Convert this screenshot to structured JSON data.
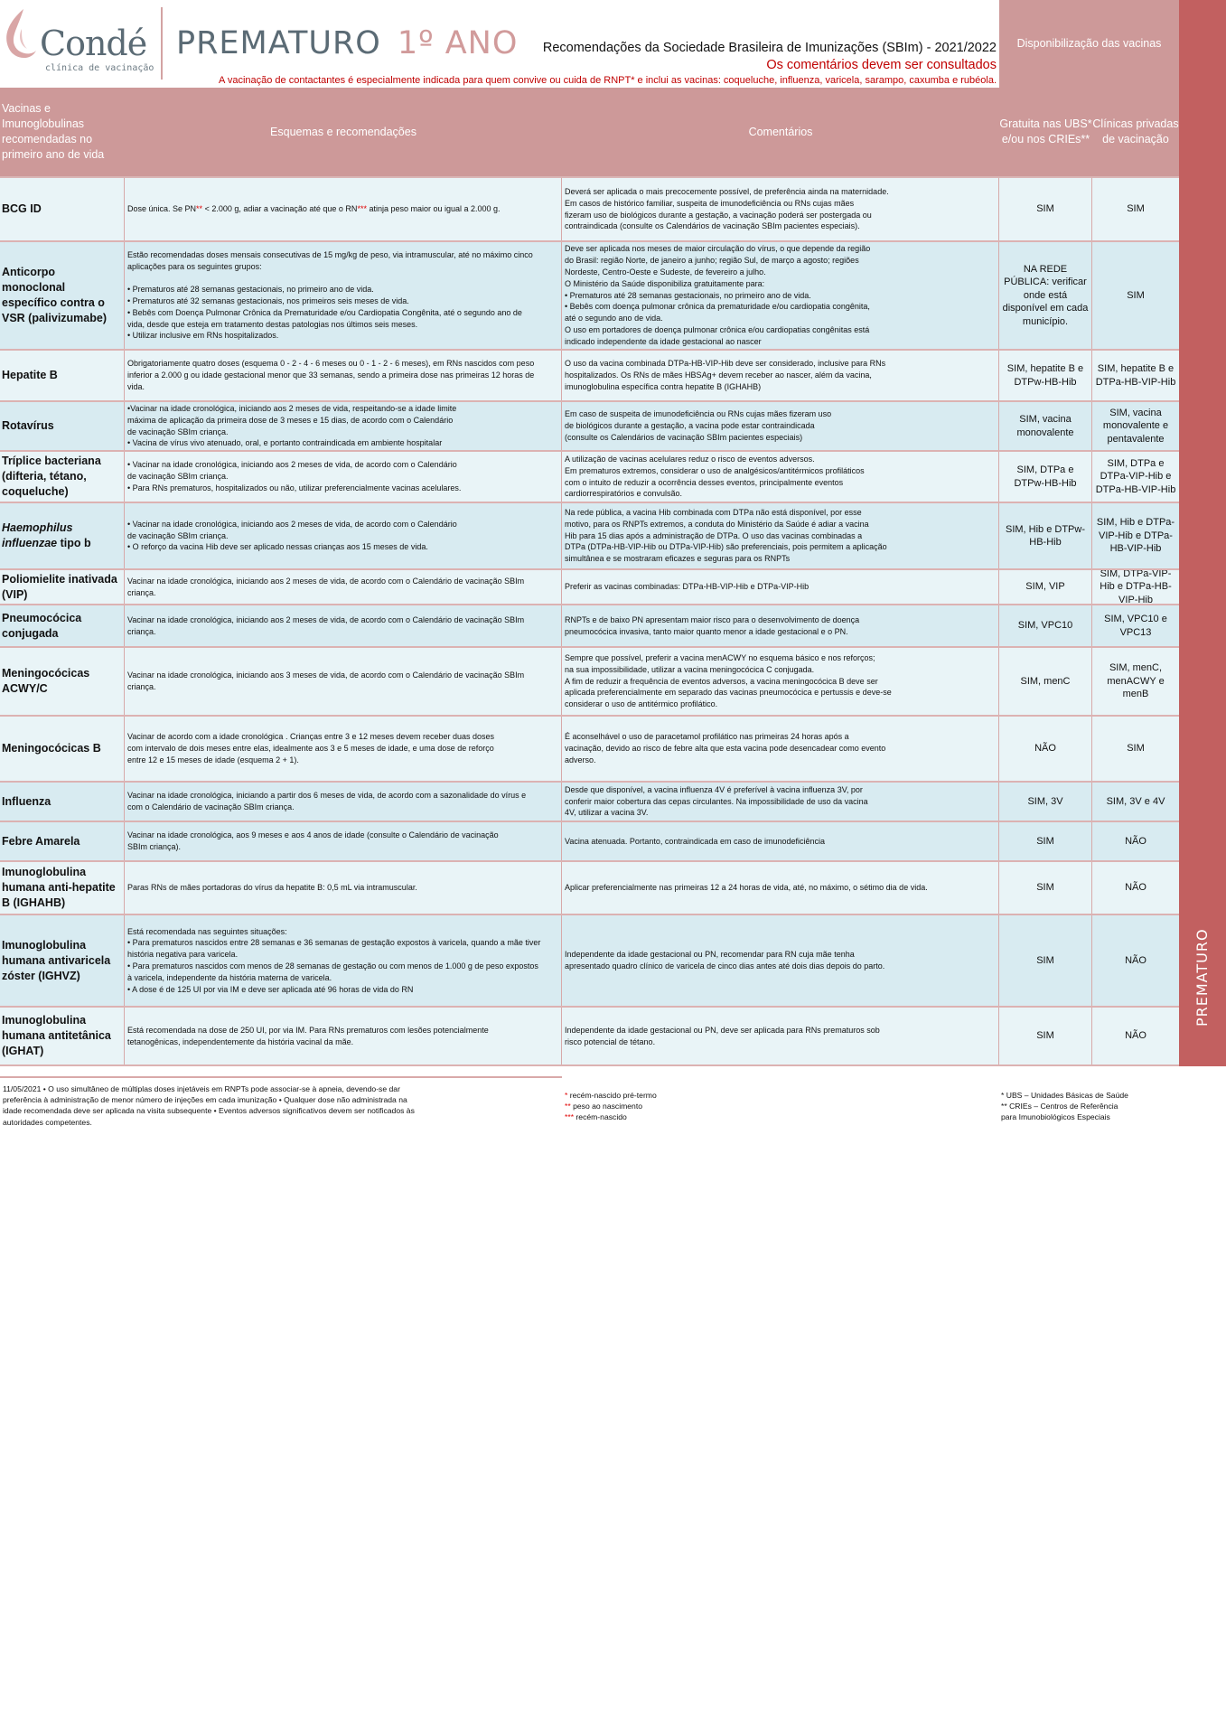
{
  "brand": {
    "name": "Condé",
    "subtitle": "clínica de vacinação",
    "accent": "#c26060",
    "header_color": "#cd9999"
  },
  "title": {
    "main": "PREMATURO",
    "year": "1º ANO"
  },
  "subtitle": "Recomendações da Sociedade Brasileira de Imunizações (SBIm) - 2021/2022",
  "consult_note": "Os comentários devem ser consultados",
  "contact_note": "A vacinação de contactantes é especialmente indicada para quem convive ou cuida de RNPT* e inclui as vacinas: coqueluche, influenza, varicela, sarampo, caxumba e rubéola.",
  "availability_header": "Disponibilização das vacinas",
  "side_label": "PREMATURO",
  "columns": [
    "Vacinas e Imunoglobulinas recomendadas no primeiro ano de vida",
    "Esquemas e recomendações",
    "Comentários",
    "Gratuita nas UBS* e/ou nos CRIEs**",
    "Clínicas privadas de vacinação"
  ],
  "rows": [
    {
      "name": "BCG ID",
      "scheme_parts": [
        {
          "t": "Dose única. Se PN"
        },
        {
          "t": "**",
          "red": true
        },
        {
          "t": " < 2.000 g, adiar a vacinação até que o RN"
        },
        {
          "t": "***",
          "red": true
        },
        {
          "t": " atinja peso maior ou igual a 2.000 g."
        }
      ],
      "comments": [
        "Deverá ser aplicada o mais precocemente possível, de preferência ainda na maternidade.",
        "Em casos de histórico familiar, suspeita de imunodeficiência ou RNs cujas mães",
        "fizeram uso de biológicos durante a gestação, a vacinação poderá ser postergada ou",
        "contraindicada (consulte os Calendários de vacinação SBIm pacientes especiais)."
      ],
      "public": "SIM",
      "private": "SIM"
    },
    {
      "name": "Anticorpo monoclonal específico contra o VSR (palivizumabe)",
      "scheme": [
        "Estão recomendadas doses mensais consecutivas de 15 mg/kg de peso, via intramuscular, até no máximo cinco",
        "aplicações para os seguintes grupos:",
        " ",
        "• Prematuros até 28 semanas gestacionais, no primeiro ano de vida.",
        "• Prematuros até 32 semanas gestacionais, nos primeiros seis meses de vida.",
        "• Bebês com Doença Pulmonar Crônica da Prematuridade e/ou Cardiopatia Congênita, até o segundo ano de",
        "vida, desde que esteja em tratamento destas patologias nos últimos seis meses.",
        "• Utilizar inclusive em RNs hospitalizados."
      ],
      "comments": [
        "Deve ser aplicada nos meses de maior circulação do vírus, o que depende da região",
        "do Brasil: região Norte, de janeiro a junho; região Sul, de março a agosto; regiões",
        "Nordeste, Centro-Oeste e Sudeste, de fevereiro a julho.",
        "O Ministério da Saúde disponibiliza gratuitamente para:",
        "• Prematuros até 28 semanas gestacionais, no primeiro ano de vida.",
        "• Bebês com doença pulmonar crônica da prematuridade e/ou cardiopatia congênita,",
        "até o segundo ano de vida.",
        "O uso em portadores de doença pulmonar crônica e/ou cardiopatias congênitas está",
        "indicado independente da idade gestacional ao nascer"
      ],
      "public": "NA REDE PÚBLICA: verificar onde está disponível em cada município.",
      "private": "SIM"
    },
    {
      "name": "Hepatite B",
      "scheme": [
        "Obrigatoriamente quatro doses (esquema 0 - 2 - 4 - 6 meses ou 0 - 1 - 2 - 6 meses), em RNs nascidos com peso",
        "inferior a 2.000 g ou idade gestacional menor que 33 semanas, sendo a primeira dose nas primeiras 12 horas de",
        "vida."
      ],
      "comments": [
        "O uso da vacina combinada DTPa-HB-VIP-Hib deve ser considerado, inclusive para RNs",
        "hospitalizados. Os RNs de mães HBSAg+ devem receber ao nascer, além da vacina,",
        "imunoglobulina específica contra hepatite B (IGHAHB)"
      ],
      "public": "SIM, hepatite B e DTPw-HB-Hib",
      "private": "SIM, hepatite B e DTPa-HB-VIP-Hib"
    },
    {
      "name": "Rotavírus",
      "scheme": [
        "•Vacinar na idade cronológica, iniciando aos 2 meses de vida, respeitando-se a idade limite",
        "máxima de aplicação da primeira dose de 3 meses e 15 dias, de acordo com o Calendário",
        "de vacinação SBIm criança.",
        "• Vacina de vírus vivo atenuado, oral, e portanto contraindicada em ambiente hospitalar"
      ],
      "comments": [
        "Em caso de suspeita de imunodeficiência ou RNs cujas mães fizeram uso",
        "de biológicos durante a gestação, a vacina pode estar contraindicada",
        "(consulte os Calendários de vacinação SBIm pacientes especiais)"
      ],
      "public": "SIM, vacina monovalente",
      "private": "SIM, vacina monovalente e pentavalente"
    },
    {
      "name": "Tríplice bacteriana (difteria, tétano, coqueluche)",
      "scheme": [
        "• Vacinar na idade cronológica, iniciando aos 2 meses de vida, de acordo com o Calendário",
        "de vacinação SBIm criança.",
        "• Para RNs prematuros, hospitalizados ou não, utilizar preferencialmente vacinas acelulares."
      ],
      "comments": [
        "A utilização de vacinas acelulares reduz o risco de eventos adversos.",
        "Em prematuros extremos, considerar o uso de analgésicos/antitérmicos profiláticos",
        "com o intuito de reduzir a ocorrência desses eventos, principalmente eventos",
        "cardiorrespiratórios e convulsão."
      ],
      "public": "SIM, DTPa e DTPw-HB-Hib",
      "private": "SIM, DTPa e DTPa-VIP-Hib e DTPa-HB-VIP-Hib"
    },
    {
      "name_parts": [
        {
          "t": "Haemophilus influenzae",
          "i": true
        },
        {
          "t": " tipo b"
        }
      ],
      "scheme": [
        "• Vacinar na idade cronológica, iniciando aos 2 meses de vida, de acordo com o Calendário",
        "de vacinação SBIm criança.",
        "• O reforço da vacina Hib deve ser aplicado nessas crianças aos 15 meses de vida."
      ],
      "comments": [
        "Na rede pública, a vacina Hib combinada com DTPa não está disponível, por esse",
        "motivo, para os RNPTs extremos, a conduta do Ministério da Saúde é adiar a vacina",
        "Hib para 15 dias após a administração de DTPa. O uso das vacinas combinadas a",
        "DTPa (DTPa-HB-VIP-Hib ou DTPa-VIP-Hib) são preferenciais, pois permitem a aplicação",
        "simultânea e se mostraram eficazes e seguras para os RNPTs"
      ],
      "public": "SIM, Hib e DTPw-HB-Hib",
      "private": "SIM, Hib e DTPa-VIP-Hib e DTPa-HB-VIP-Hib"
    },
    {
      "name": "Poliomielite inativada (VIP)",
      "scheme": [
        "Vacinar na idade cronológica, iniciando aos 2 meses de vida, de acordo com o Calendário de vacinação SBIm",
        "criança."
      ],
      "comments": [
        "Preferir as vacinas combinadas: DTPa-HB-VIP-Hib e DTPa-VIP-Hib"
      ],
      "public": "SIM, VIP",
      "private": "SIM, DTPa-VIP-Hib e DTPa-HB-VIP-Hib"
    },
    {
      "name": "Pneumocócica conjugada",
      "scheme": [
        "Vacinar na idade cronológica, iniciando aos 2 meses de vida, de acordo com o Calendário de vacinação SBIm",
        "criança."
      ],
      "comments": [
        "RNPTs e de baixo PN apresentam maior risco para o desenvolvimento de doença",
        "pneumocócica invasiva, tanto maior quanto menor a idade gestacional e o PN."
      ],
      "public": "SIM, VPC10",
      "private": "SIM, VPC10 e VPC13"
    },
    {
      "name": "Meningocócicas ACWY/C",
      "scheme": [
        "Vacinar na idade cronológica, iniciando aos 3 meses de vida, de acordo com o Calendário de vacinação SBIm",
        "criança."
      ],
      "comments": [
        "Sempre que possível, preferir a vacina menACWY no esquema básico e nos reforços;",
        "na sua impossibilidade, utilizar a vacina meningocócica C conjugada.",
        "A fim de reduzir a frequência de eventos adversos, a vacina meningocócica B deve ser",
        "aplicada preferencialmente em separado das vacinas pneumocócica e pertussis e deve-se",
        "considerar o uso de antitérmico profilático."
      ],
      "public": "SIM, menC",
      "private": "SIM, menC, menACWY e menB"
    },
    {
      "name": "Meningocócicas B",
      "scheme": [
        "Vacinar de acordo com a idade cronológica . Crianças entre 3 e 12 meses devem receber duas doses",
        "com intervalo de dois meses entre elas, idealmente aos 3 e 5 meses de idade, e uma dose de reforço",
        "entre 12 e 15 meses de idade (esquema 2 + 1)."
      ],
      "comments": [
        "É aconselhável o uso de paracetamol profilático nas primeiras 24 horas após a",
        "vacinação, devido ao risco de febre alta que esta vacina pode desencadear como evento",
        "adverso."
      ],
      "public": "NÃO",
      "private": "SIM"
    },
    {
      "name": "Influenza",
      "scheme": [
        "Vacinar na idade cronológica, iniciando a partir dos 6 meses de vida, de acordo com a sazonalidade do vírus e",
        "com o Calendário de vacinação SBIm criança."
      ],
      "comments": [
        "Desde que disponível, a vacina influenza 4V é preferível à vacina influenza 3V, por",
        "conferir maior cobertura das cepas circulantes. Na impossibilidade de uso da vacina",
        "4V, utilizar a vacina 3V."
      ],
      "public": "SIM, 3V",
      "private": "SIM, 3V e 4V"
    },
    {
      "name": "Febre Amarela",
      "scheme": [
        "Vacinar na idade cronológica, aos 9 meses e aos 4 anos de idade (consulte o Calendário de vacinação",
        "SBIm criança)."
      ],
      "comments": [
        "Vacina atenuada. Portanto, contraindicada em caso de imunodeficiência"
      ],
      "public": "SIM",
      "private": "NÃO"
    },
    {
      "name": "Imunoglobulina humana anti-hepatite B (IGHAHB)",
      "scheme": [
        "Paras RNs de mães portadoras do vírus da hepatite B: 0,5 mL via intramuscular."
      ],
      "comments": [
        "Aplicar preferencialmente nas primeiras 12 a 24 horas de vida, até, no máximo, o sétimo dia de vida."
      ],
      "public": "SIM",
      "private": "NÃO"
    },
    {
      "name": "Imunoglobulina humana antivaricela zóster (IGHVZ)",
      "scheme": [
        "Está recomendada nas seguintes situações:",
        "• Para prematuros nascidos entre 28 semanas e 36 semanas de gestação expostos à varicela, quando a mãe tiver",
        "história negativa para varicela.",
        "• Para prematuros nascidos com menos de 28 semanas de gestação ou com menos de 1.000 g de peso expostos",
        "à varicela, independente da história materna de varicela.",
        "• A dose é de 125 UI por via IM e deve ser aplicada até 96 horas de vida do RN"
      ],
      "comments": [
        "Independente da idade gestacional ou PN, recomendar para RN cuja mãe tenha",
        "apresentado quadro clínico de varicela de cinco dias antes até dois dias depois do parto."
      ],
      "public": "SIM",
      "private": "NÃO"
    },
    {
      "name": "Imunoglobulina humana antitetânica (IGHAT)",
      "scheme": [
        "Está recomendada na dose de 250 UI, por via IM. Para RNs prematuros com lesões potencialmente",
        "tetanogênicas, independentemente da história vacinal da mãe."
      ],
      "comments": [
        "Independente da idade gestacional ou PN, deve ser aplicada para RNs prematuros sob",
        "risco potencial de tétano."
      ],
      "public": "SIM",
      "private": "NÃO"
    }
  ],
  "footer": {
    "note": "11/05/2021 • O uso simultâneo de múltiplas doses injetáveis em RNPTs pode associar-se à apneia, devendo-se dar preferência à administração de menor número de injeções em cada imunização • Qualquer dose não administrada na idade recomendada deve ser aplicada na visita subsequente • Eventos adversos significativos devem ser notificados às autoridades competentes.",
    "legend_left": [
      {
        "mark": "*",
        "text": " recém-nascido pré-termo"
      },
      {
        "mark": "**",
        "text": " peso ao nascimento"
      },
      {
        "mark": "***",
        "text": " recém-nascido"
      }
    ],
    "legend_right": [
      "* UBS – Unidades Básicas de Saúde",
      "** CRIEs – Centros de Referência",
      "para Imunobiológicos Especiais"
    ]
  }
}
